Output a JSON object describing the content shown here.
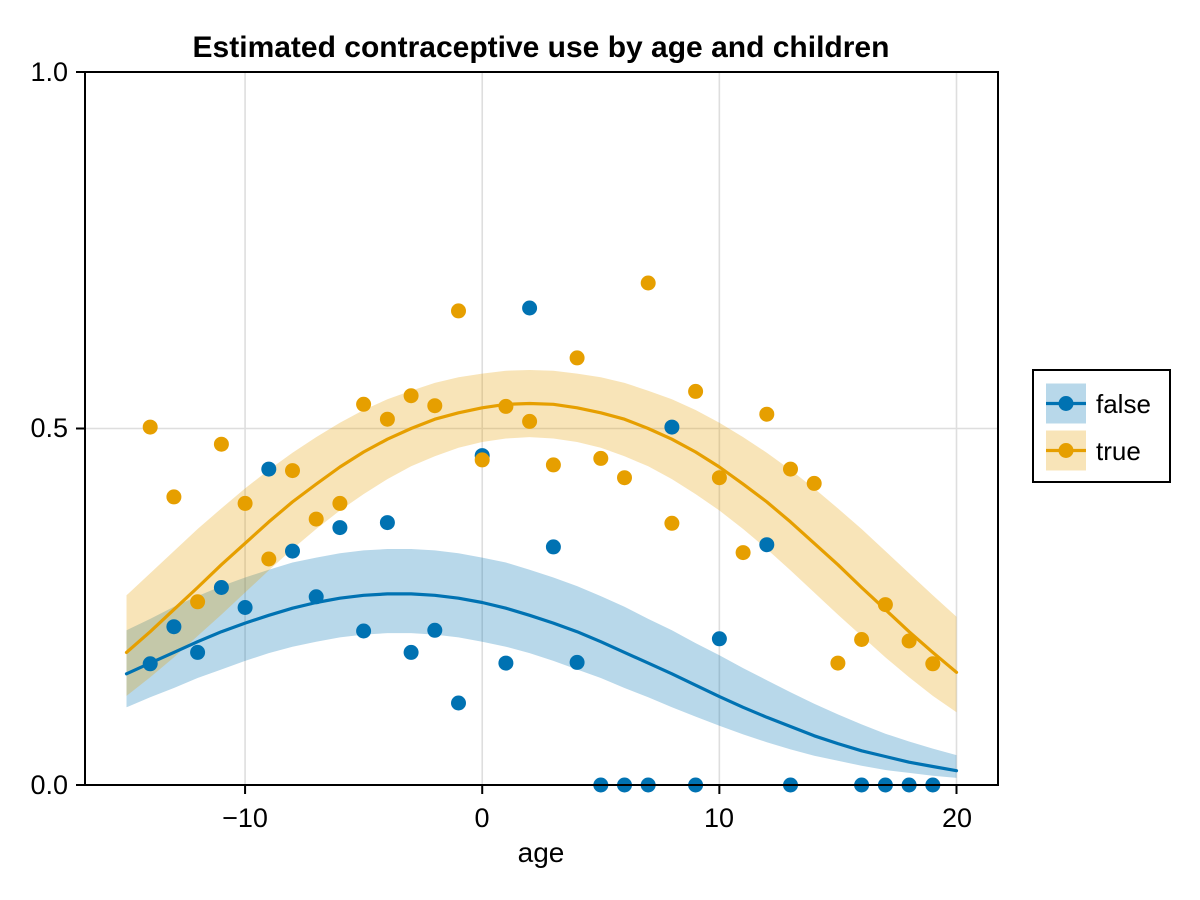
{
  "chart_data": {
    "type": "scatter",
    "title": "Estimated contraceptive use by age and children",
    "xlabel": "age",
    "ylabel": "",
    "xlim": [
      -16.75,
      21.75
    ],
    "ylim": [
      0,
      1
    ],
    "x_ticks": [
      -10,
      0,
      10,
      20
    ],
    "x_tick_labels": [
      "−10",
      "0",
      "10",
      "20"
    ],
    "y_ticks": [
      0.0,
      0.5,
      1.0
    ],
    "y_tick_labels": [
      "0.0",
      "0.5",
      "1.0"
    ],
    "grid": true,
    "band_opacity": 0.28,
    "legend": {
      "position": "right-outside"
    },
    "series": [
      {
        "name": "false",
        "color": "#0072B2",
        "points": [
          [
            -14,
            0.17
          ],
          [
            -13,
            0.222
          ],
          [
            -12,
            0.186
          ],
          [
            -11,
            0.277
          ],
          [
            -10,
            0.249
          ],
          [
            -9,
            0.443
          ],
          [
            -8,
            0.328
          ],
          [
            -7,
            0.264
          ],
          [
            -6,
            0.361
          ],
          [
            -5,
            0.216
          ],
          [
            -4,
            0.368
          ],
          [
            -3,
            0.186
          ],
          [
            -2,
            0.217
          ],
          [
            -1,
            0.115
          ],
          [
            0,
            0.462
          ],
          [
            1,
            0.171
          ],
          [
            2,
            0.669
          ],
          [
            3,
            0.334
          ],
          [
            4,
            0.172
          ],
          [
            5,
            0
          ],
          [
            6,
            0
          ],
          [
            7,
            0
          ],
          [
            8,
            0.502
          ],
          [
            9,
            0
          ],
          [
            10,
            0.205
          ],
          [
            12,
            0.337
          ],
          [
            13,
            0
          ],
          [
            16,
            0
          ],
          [
            17,
            0
          ],
          [
            18,
            0
          ],
          [
            19,
            0
          ]
        ],
        "fit": {
          "x": [
            -15,
            -14,
            -13,
            -12,
            -11,
            -10,
            -9,
            -8,
            -7,
            -6,
            -5,
            -4,
            -3,
            -2,
            -1,
            0,
            1,
            2,
            3,
            4,
            5,
            6,
            7,
            8,
            9,
            10,
            11,
            12,
            13,
            14,
            15,
            16,
            17,
            18,
            19,
            20
          ],
          "y": [
            0.156,
            0.171,
            0.186,
            0.201,
            0.215,
            0.227,
            0.238,
            0.248,
            0.256,
            0.262,
            0.266,
            0.268,
            0.268,
            0.266,
            0.262,
            0.256,
            0.248,
            0.238,
            0.227,
            0.215,
            0.201,
            0.186,
            0.171,
            0.156,
            0.14,
            0.124,
            0.109,
            0.095,
            0.082,
            0.069,
            0.058,
            0.048,
            0.04,
            0.032,
            0.026,
            0.02
          ],
          "hi": [
            0.217,
            0.233,
            0.25,
            0.265,
            0.279,
            0.291,
            0.302,
            0.312,
            0.319,
            0.325,
            0.329,
            0.331,
            0.331,
            0.329,
            0.325,
            0.319,
            0.312,
            0.302,
            0.291,
            0.279,
            0.265,
            0.25,
            0.233,
            0.217,
            0.199,
            0.182,
            0.164,
            0.147,
            0.13,
            0.114,
            0.099,
            0.085,
            0.072,
            0.061,
            0.051,
            0.042
          ],
          "lo": [
            0.109,
            0.123,
            0.136,
            0.15,
            0.162,
            0.174,
            0.185,
            0.194,
            0.201,
            0.207,
            0.211,
            0.213,
            0.213,
            0.211,
            0.207,
            0.201,
            0.194,
            0.185,
            0.174,
            0.162,
            0.15,
            0.136,
            0.123,
            0.109,
            0.096,
            0.083,
            0.071,
            0.06,
            0.05,
            0.041,
            0.034,
            0.027,
            0.021,
            0.017,
            0.013,
            0.01
          ]
        }
      },
      {
        "name": "true",
        "color": "#E69F00",
        "points": [
          [
            -14,
            0.502
          ],
          [
            -13,
            0.404
          ],
          [
            -12,
            0.257
          ],
          [
            -11,
            0.478
          ],
          [
            -10,
            0.395
          ],
          [
            -9,
            0.317
          ],
          [
            -8,
            0.441
          ],
          [
            -7,
            0.373
          ],
          [
            -6,
            0.395
          ],
          [
            -5,
            0.534
          ],
          [
            -4,
            0.513
          ],
          [
            -3,
            0.546
          ],
          [
            -2,
            0.532
          ],
          [
            -1,
            0.665
          ],
          [
            0,
            0.456
          ],
          [
            1,
            0.531
          ],
          [
            2,
            0.51
          ],
          [
            3,
            0.449
          ],
          [
            4,
            0.599
          ],
          [
            5,
            0.458
          ],
          [
            6,
            0.431
          ],
          [
            7,
            0.704
          ],
          [
            8,
            0.367
          ],
          [
            9,
            0.552
          ],
          [
            10,
            0.431
          ],
          [
            11,
            0.326
          ],
          [
            12,
            0.52
          ],
          [
            13,
            0.443
          ],
          [
            14,
            0.423
          ],
          [
            15,
            0.171
          ],
          [
            16,
            0.204
          ],
          [
            17,
            0.253
          ],
          [
            18,
            0.202
          ],
          [
            19,
            0.17
          ]
        ],
        "fit": {
          "x": [
            -15,
            -14,
            -13,
            -12,
            -11,
            -10,
            -9,
            -8,
            -7,
            -6,
            -5,
            -4,
            -3,
            -2,
            -1,
            0,
            1,
            2,
            3,
            4,
            5,
            6,
            7,
            8,
            9,
            10,
            11,
            12,
            13,
            14,
            15,
            16,
            17,
            18,
            19,
            20
          ],
          "y": [
            0.186,
            0.215,
            0.246,
            0.277,
            0.309,
            0.339,
            0.369,
            0.397,
            0.422,
            0.446,
            0.467,
            0.485,
            0.5,
            0.513,
            0.522,
            0.529,
            0.534,
            0.535,
            0.534,
            0.529,
            0.522,
            0.513,
            0.5,
            0.485,
            0.467,
            0.446,
            0.422,
            0.397,
            0.369,
            0.339,
            0.309,
            0.277,
            0.246,
            0.215,
            0.186,
            0.158
          ],
          "hi": [
            0.266,
            0.297,
            0.328,
            0.359,
            0.388,
            0.416,
            0.442,
            0.466,
            0.488,
            0.508,
            0.526,
            0.541,
            0.553,
            0.564,
            0.572,
            0.577,
            0.581,
            0.582,
            0.581,
            0.577,
            0.572,
            0.564,
            0.553,
            0.541,
            0.526,
            0.508,
            0.488,
            0.466,
            0.442,
            0.416,
            0.388,
            0.359,
            0.328,
            0.297,
            0.266,
            0.236
          ],
          "lo": [
            0.125,
            0.151,
            0.179,
            0.209,
            0.239,
            0.27,
            0.301,
            0.331,
            0.359,
            0.385,
            0.408,
            0.429,
            0.447,
            0.461,
            0.473,
            0.481,
            0.486,
            0.488,
            0.486,
            0.481,
            0.473,
            0.461,
            0.447,
            0.429,
            0.408,
            0.385,
            0.359,
            0.331,
            0.301,
            0.27,
            0.239,
            0.209,
            0.179,
            0.151,
            0.125,
            0.102
          ]
        }
      }
    ]
  }
}
